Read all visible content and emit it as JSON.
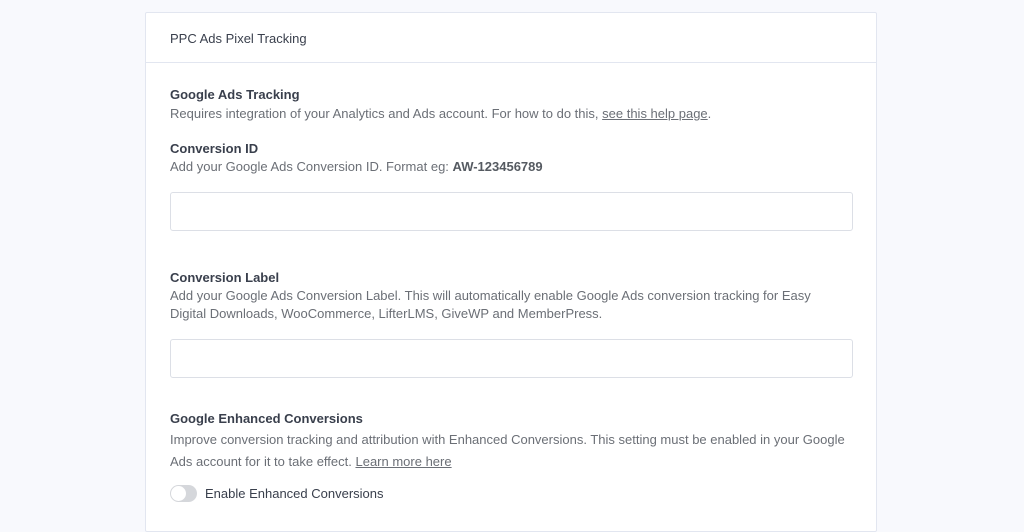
{
  "card": {
    "title": "PPC Ads Pixel Tracking"
  },
  "google_ads": {
    "heading": "Google Ads Tracking",
    "desc": "Requires integration of your Analytics and Ads account. For how to do this, ",
    "link": "see this help page",
    "after": "."
  },
  "conversion_id": {
    "label": "Conversion ID",
    "desc": "Add your Google Ads Conversion ID. Format eg: ",
    "example": "AW-123456789",
    "value": ""
  },
  "conversion_label": {
    "label": "Conversion Label",
    "desc": "Add your Google Ads Conversion Label. This will automatically enable Google Ads conversion tracking for Easy Digital Downloads, WooCommerce, LifterLMS, GiveWP and MemberPress.",
    "value": ""
  },
  "enhanced": {
    "heading": "Google Enhanced Conversions",
    "desc": "Improve conversion tracking and attribution with Enhanced Conversions. This setting must be enabled in your Google Ads account for it to take effect. ",
    "link": "Learn more here",
    "toggle_label": "Enable Enhanced Conversions",
    "toggle_on": false
  }
}
